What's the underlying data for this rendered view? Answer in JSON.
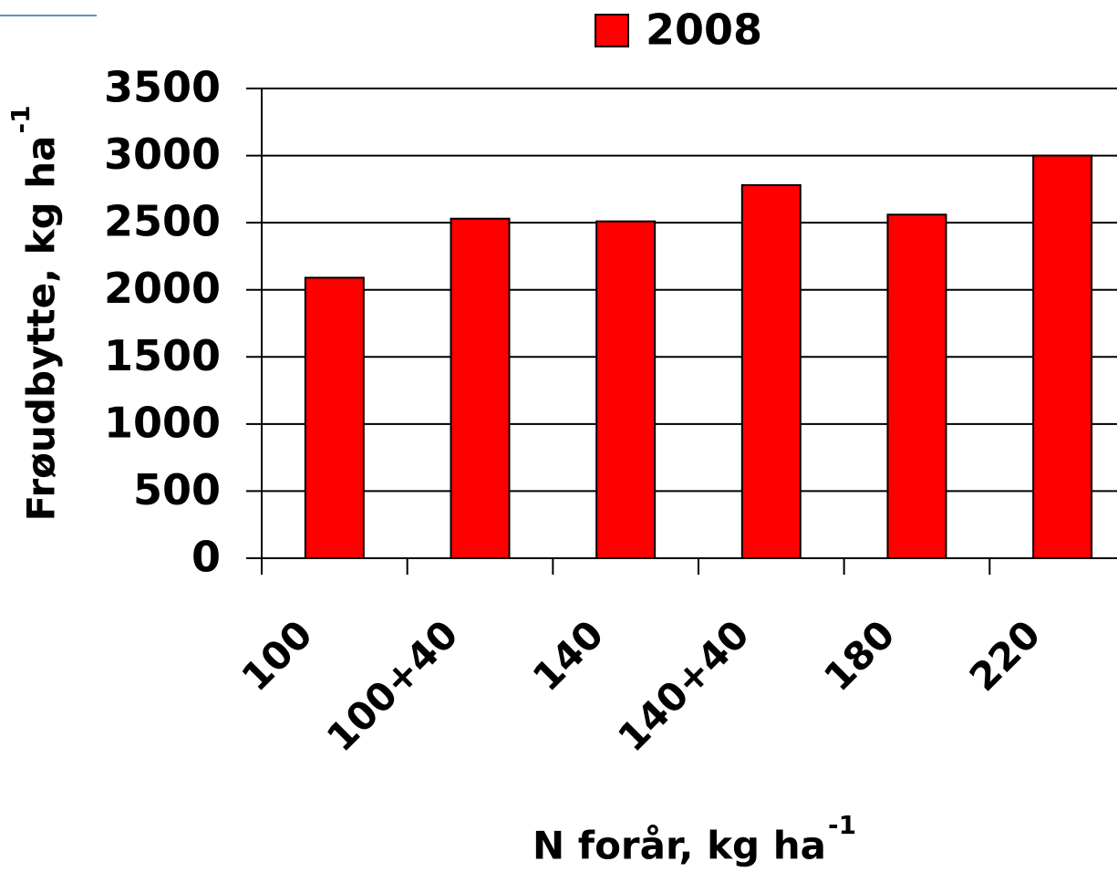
{
  "chart_data": {
    "type": "bar",
    "x_label": {
      "text": "N forår, kg ha",
      "superscript": "-1"
    },
    "y_label": {
      "text": "Frøudbytte, kg ha",
      "superscript": "-1"
    },
    "categories": [
      "100",
      "100+40",
      "140",
      "140+40",
      "180",
      "220"
    ],
    "series": [
      {
        "name": "2008",
        "color": "#ff0000",
        "values": [
          2090,
          2530,
          2510,
          2780,
          2560,
          3000
        ]
      }
    ],
    "ylim": [
      0,
      3500
    ],
    "yticks": [
      0,
      500,
      1000,
      1500,
      2000,
      2500,
      3000,
      3500
    ],
    "grid": true
  }
}
